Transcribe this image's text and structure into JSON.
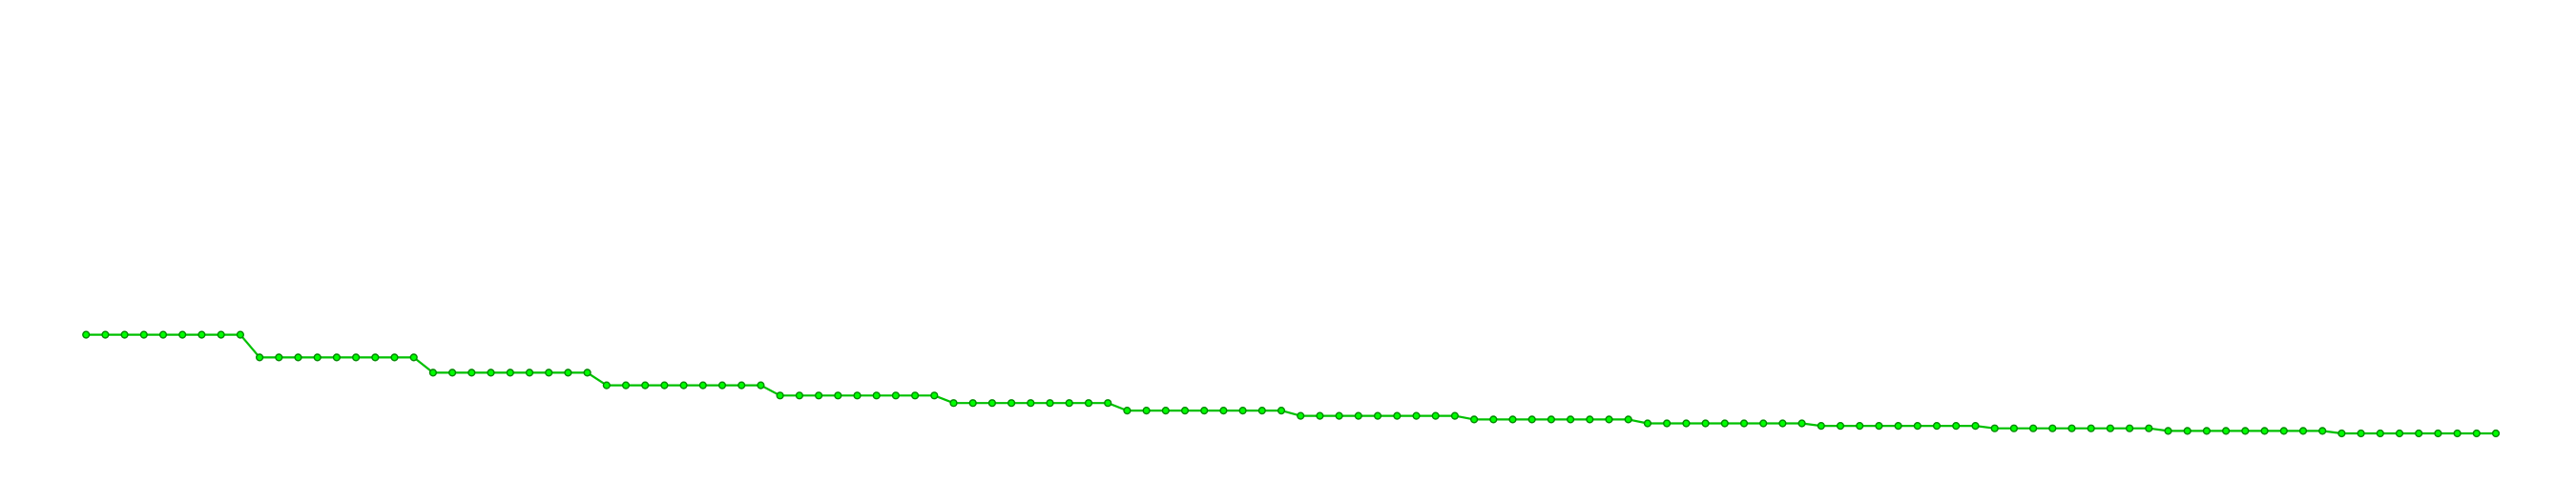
{
  "chart_data": {
    "type": "line",
    "title": "",
    "xlabel": "",
    "ylabel": "",
    "grid": false,
    "legend": "none",
    "axes_visible": false,
    "xlim": [
      0,
      121
    ],
    "ylim": [
      0,
      18
    ],
    "marker": "circle",
    "colors": {
      "line": "#00c000",
      "marker_fill": "#00ff00",
      "marker_edge": "#008800",
      "background": "#ffffff"
    },
    "series": [
      {
        "values": [
          5.0,
          5.0,
          5.0,
          5.0,
          5.0,
          5.0,
          5.0,
          5.0,
          5.0,
          4.0,
          4.0,
          4.0,
          4.0,
          4.0,
          4.0,
          4.0,
          4.0,
          4.0,
          3.33,
          3.33,
          3.33,
          3.33,
          3.33,
          3.33,
          3.33,
          3.33,
          3.33,
          2.78,
          2.78,
          2.78,
          2.78,
          2.78,
          2.78,
          2.78,
          2.78,
          2.78,
          2.33,
          2.33,
          2.33,
          2.33,
          2.33,
          2.33,
          2.33,
          2.33,
          2.33,
          2.0,
          2.0,
          2.0,
          2.0,
          2.0,
          2.0,
          2.0,
          2.0,
          2.0,
          1.67,
          1.67,
          1.67,
          1.67,
          1.67,
          1.67,
          1.67,
          1.67,
          1.67,
          1.44,
          1.44,
          1.44,
          1.44,
          1.44,
          1.44,
          1.44,
          1.44,
          1.44,
          1.28,
          1.28,
          1.28,
          1.28,
          1.28,
          1.28,
          1.28,
          1.28,
          1.28,
          1.11,
          1.11,
          1.11,
          1.11,
          1.11,
          1.11,
          1.11,
          1.11,
          1.11,
          1.0,
          1.0,
          1.0,
          1.0,
          1.0,
          1.0,
          1.0,
          1.0,
          1.0,
          0.89,
          0.89,
          0.89,
          0.89,
          0.89,
          0.89,
          0.89,
          0.89,
          0.89,
          0.78,
          0.78,
          0.78,
          0.78,
          0.78,
          0.78,
          0.78,
          0.78,
          0.78,
          0.67,
          0.67,
          0.67,
          0.67,
          0.67,
          0.67,
          0.67,
          0.67,
          0.67
        ]
      }
    ]
  }
}
